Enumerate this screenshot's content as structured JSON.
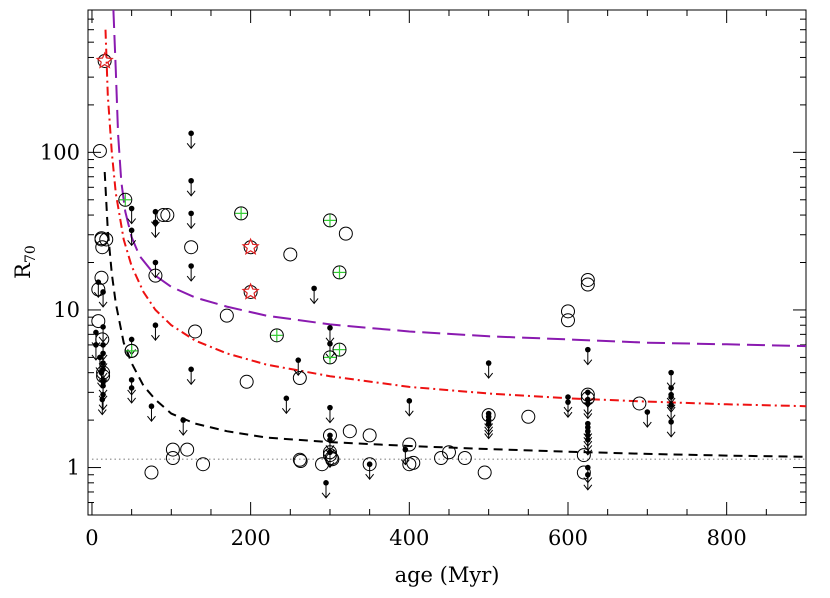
{
  "chart_data": {
    "type": "scatter",
    "title": "",
    "xlabel": "age (Myr)",
    "ylabel": "R70",
    "ylabel_main": "R",
    "ylabel_sub": "70",
    "xlim": [
      -5,
      900
    ],
    "ylim": [
      0.5,
      800
    ],
    "yscale": "log",
    "xticks": [
      0,
      200,
      400,
      600,
      800
    ],
    "xtick_labels": [
      "0",
      "200",
      "400",
      "600",
      "800"
    ],
    "yticks": [
      1,
      10,
      100
    ],
    "ytick_labels": [
      "1",
      "10",
      "100"
    ],
    "grid": false,
    "legend": "none",
    "colors": {
      "black_curve": "#000000",
      "red_curve": "#ee1111",
      "purple_curve": "#8a1ab0",
      "dotted_line": "#888888",
      "green_cross": "#33cc33",
      "red_star": "#dd2222"
    },
    "reference_line_y": 1.13,
    "curves": [
      {
        "style": "dashed",
        "color": "black_curve",
        "points": [
          [
            16,
            75
          ],
          [
            20,
            32
          ],
          [
            25,
            17
          ],
          [
            30,
            11
          ],
          [
            40,
            6.2
          ],
          [
            50,
            4.6
          ],
          [
            65,
            3.3
          ],
          [
            80,
            2.7
          ],
          [
            100,
            2.2
          ],
          [
            130,
            1.9
          ],
          [
            170,
            1.7
          ],
          [
            220,
            1.55
          ],
          [
            300,
            1.45
          ],
          [
            400,
            1.37
          ],
          [
            500,
            1.31
          ],
          [
            600,
            1.26
          ],
          [
            700,
            1.22
          ],
          [
            800,
            1.19
          ],
          [
            900,
            1.17
          ]
        ]
      },
      {
        "style": "dash-dot",
        "color": "red_curve",
        "points": [
          [
            17,
            600
          ],
          [
            20,
            230
          ],
          [
            25,
            100
          ],
          [
            30,
            55
          ],
          [
            40,
            28
          ],
          [
            50,
            19
          ],
          [
            65,
            13
          ],
          [
            80,
            10
          ],
          [
            100,
            8
          ],
          [
            130,
            6.4
          ],
          [
            170,
            5.3
          ],
          [
            220,
            4.5
          ],
          [
            300,
            3.8
          ],
          [
            400,
            3.25
          ],
          [
            500,
            2.95
          ],
          [
            600,
            2.75
          ],
          [
            700,
            2.62
          ],
          [
            800,
            2.52
          ],
          [
            900,
            2.45
          ]
        ]
      },
      {
        "style": "long-dash",
        "color": "purple_curve",
        "points": [
          [
            27,
            800
          ],
          [
            30,
            330
          ],
          [
            33,
            130
          ],
          [
            37,
            65
          ],
          [
            42,
            42
          ],
          [
            50,
            29
          ],
          [
            60,
            22
          ],
          [
            80,
            16.5
          ],
          [
            100,
            14
          ],
          [
            130,
            12
          ],
          [
            170,
            10.5
          ],
          [
            220,
            9.2
          ],
          [
            300,
            8.1
          ],
          [
            400,
            7.3
          ],
          [
            500,
            6.8
          ],
          [
            600,
            6.5
          ],
          [
            700,
            6.2
          ],
          [
            800,
            6.05
          ],
          [
            900,
            5.9
          ]
        ]
      }
    ],
    "open_circles": [
      [
        8,
        13.5
      ],
      [
        8,
        8.5
      ],
      [
        10,
        102
      ],
      [
        12,
        16
      ],
      [
        12,
        28
      ],
      [
        12,
        28.5
      ],
      [
        13,
        25
      ],
      [
        13,
        6.5
      ],
      [
        14,
        4
      ],
      [
        14,
        3.8
      ],
      [
        18,
        28
      ],
      [
        50,
        5.5
      ],
      [
        90,
        40
      ],
      [
        95,
        40
      ],
      [
        80,
        16.5
      ],
      [
        102,
        1.3
      ],
      [
        102,
        1.15
      ],
      [
        120,
        1.3
      ],
      [
        125,
        25
      ],
      [
        130,
        7.3
      ],
      [
        140,
        1.05
      ],
      [
        170,
        9.2
      ],
      [
        195,
        3.5
      ],
      [
        250,
        22.5
      ],
      [
        262,
        3.7
      ],
      [
        262,
        1.12
      ],
      [
        263,
        1.1
      ],
      [
        290,
        1.05
      ],
      [
        300,
        1.6
      ],
      [
        300,
        1.25
      ],
      [
        300,
        1.2
      ],
      [
        302,
        1.15
      ],
      [
        303,
        1.13
      ],
      [
        320,
        30.5
      ],
      [
        325,
        1.7
      ],
      [
        350,
        1.6
      ],
      [
        350,
        1.05
      ],
      [
        400,
        1.4
      ],
      [
        400,
        1.05
      ],
      [
        405,
        1.07
      ],
      [
        440,
        1.15
      ],
      [
        450,
        1.25
      ],
      [
        470,
        1.15
      ],
      [
        495,
        0.93
      ],
      [
        500,
        2.15
      ],
      [
        550,
        2.1
      ],
      [
        600,
        9.8
      ],
      [
        600,
        8.6
      ],
      [
        620,
        1.2
      ],
      [
        620,
        0.93
      ],
      [
        625,
        15.5
      ],
      [
        625,
        14.5
      ],
      [
        625,
        2.9
      ],
      [
        625,
        2.75
      ],
      [
        690,
        2.55
      ],
      [
        75,
        0.93
      ]
    ],
    "green_crossed_circles": [
      [
        42,
        50
      ],
      [
        50,
        5.5
      ],
      [
        188,
        41
      ],
      [
        233,
        6.9
      ],
      [
        300,
        37
      ],
      [
        300,
        5.0
      ],
      [
        312,
        17.3
      ],
      [
        312,
        5.6
      ]
    ],
    "red_stars": [
      [
        16,
        380
      ],
      [
        200,
        25
      ],
      [
        200,
        13
      ]
    ],
    "upper_limits": [
      [
        5,
        7.2
      ],
      [
        5,
        6
      ],
      [
        8,
        15
      ],
      [
        10,
        5
      ],
      [
        12,
        4
      ],
      [
        13,
        2.7
      ],
      [
        14,
        13
      ],
      [
        14,
        7.8
      ],
      [
        14,
        6
      ],
      [
        14,
        5.3
      ],
      [
        14,
        4.6
      ],
      [
        14,
        4.2
      ],
      [
        14,
        3.6
      ],
      [
        14,
        3.3
      ],
      [
        14,
        2.9
      ],
      [
        50,
        44
      ],
      [
        50,
        32
      ],
      [
        50,
        6.5
      ],
      [
        50,
        3.6
      ],
      [
        50,
        3.2
      ],
      [
        75,
        2.45
      ],
      [
        80,
        42
      ],
      [
        80,
        36
      ],
      [
        80,
        20
      ],
      [
        80,
        8
      ],
      [
        115,
        2.0
      ],
      [
        125,
        132
      ],
      [
        125,
        66
      ],
      [
        125,
        41
      ],
      [
        125,
        19
      ],
      [
        125,
        4.2
      ],
      [
        245,
        2.75
      ],
      [
        260,
        4.8
      ],
      [
        280,
        13.7
      ],
      [
        300,
        7.7
      ],
      [
        300,
        6.1
      ],
      [
        300,
        2.4
      ],
      [
        300,
        1.6
      ],
      [
        300,
        1.5
      ],
      [
        300,
        1.25
      ],
      [
        295,
        0.8
      ],
      [
        350,
        1.05
      ],
      [
        395,
        1.3
      ],
      [
        400,
        2.65
      ],
      [
        500,
        4.6
      ],
      [
        500,
        2.2
      ],
      [
        500,
        2.1
      ],
      [
        500,
        2.0
      ],
      [
        500,
        1.9
      ],
      [
        600,
        2.8
      ],
      [
        600,
        2.6
      ],
      [
        625,
        5.6
      ],
      [
        625,
        3.0
      ],
      [
        625,
        2.7
      ],
      [
        625,
        2.55
      ],
      [
        625,
        1.9
      ],
      [
        625,
        1.8
      ],
      [
        625,
        1.7
      ],
      [
        625,
        1.6
      ],
      [
        625,
        1.5
      ],
      [
        625,
        1.0
      ],
      [
        625,
        0.9
      ],
      [
        700,
        2.25
      ],
      [
        730,
        4.0
      ],
      [
        730,
        3.2
      ],
      [
        730,
        2.9
      ],
      [
        730,
        2.8
      ],
      [
        730,
        2.5
      ],
      [
        730,
        1.95
      ]
    ]
  }
}
